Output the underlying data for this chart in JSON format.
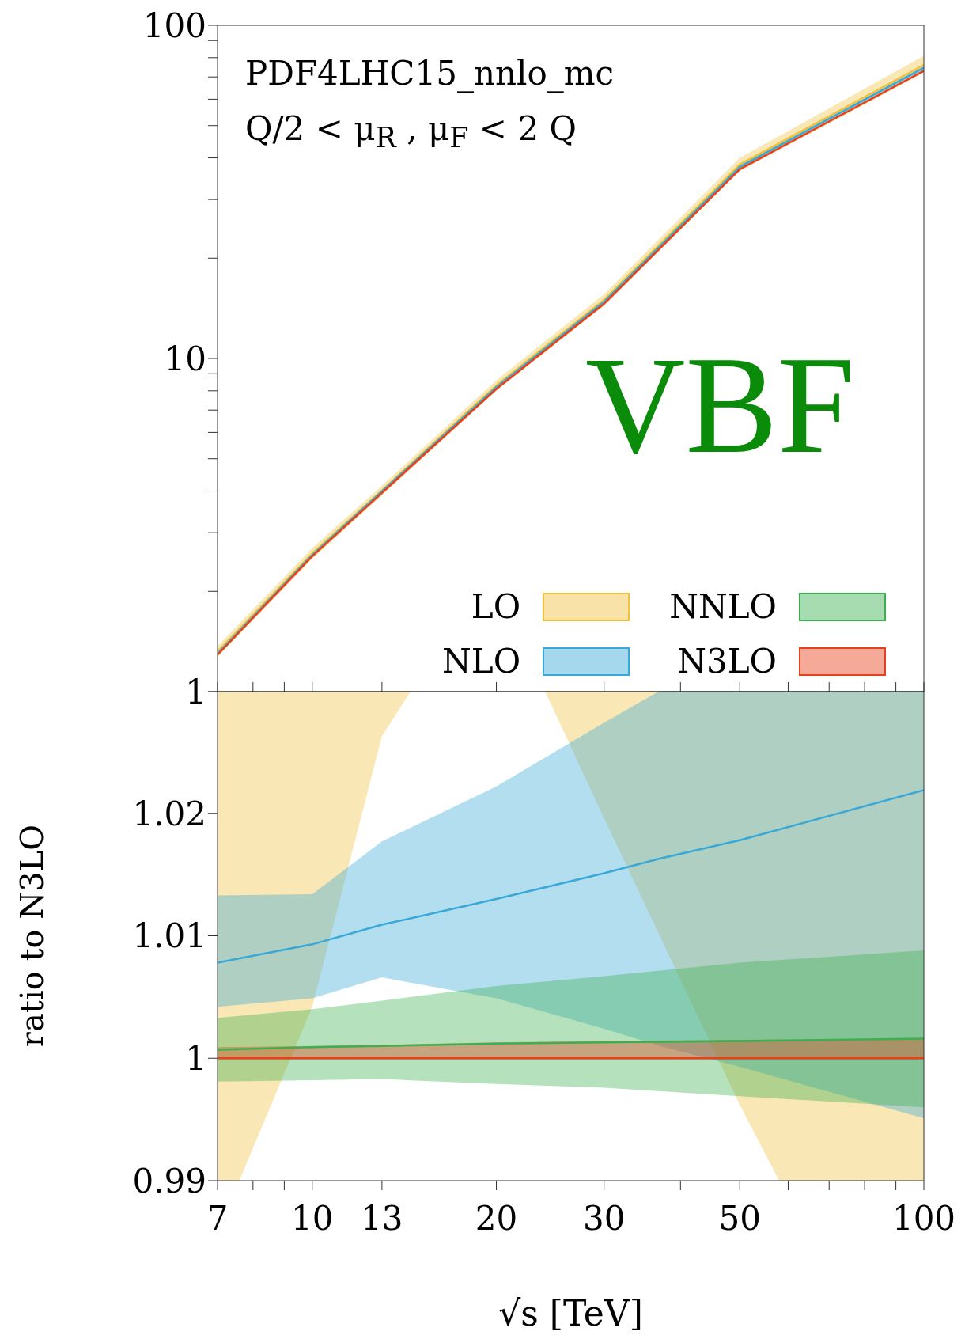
{
  "chart_data": [
    {
      "type": "line",
      "log": "xy",
      "xlim": [
        7,
        100
      ],
      "ylim": [
        1,
        100
      ],
      "xticks": [
        {
          "value": 7,
          "label": null
        },
        {
          "value": 8,
          "label": null
        },
        {
          "value": 9,
          "label": null
        },
        {
          "value": 10,
          "label": null
        },
        {
          "value": 13,
          "label": null
        },
        {
          "value": 20,
          "label": null
        },
        {
          "value": 30,
          "label": null
        },
        {
          "value": 40,
          "label": null
        },
        {
          "value": 50,
          "label": null
        },
        {
          "value": 60,
          "label": null
        },
        {
          "value": 70,
          "label": null
        },
        {
          "value": 80,
          "label": null
        },
        {
          "value": 90,
          "label": null
        },
        {
          "value": 100,
          "label": null
        }
      ],
      "yticks": [
        1,
        {
          "value": 2,
          "label": null
        },
        {
          "value": 3,
          "label": null
        },
        {
          "value": 4,
          "label": null
        },
        {
          "value": 5,
          "label": null
        },
        {
          "value": 6,
          "label": null
        },
        {
          "value": 7,
          "label": null
        },
        {
          "value": 8,
          "label": null
        },
        {
          "value": 9,
          "label": null
        },
        10,
        {
          "value": 20,
          "label": null
        },
        {
          "value": 30,
          "label": null
        },
        {
          "value": 40,
          "label": null
        },
        {
          "value": 50,
          "label": null
        },
        {
          "value": 60,
          "label": null
        },
        {
          "value": 70,
          "label": null
        },
        {
          "value": 80,
          "label": null
        },
        {
          "value": 90,
          "label": null
        },
        100
      ],
      "tick_labels": "y",
      "legend": "bottom right",
      "marker": "none",
      "annotations": [
        "PDF4LHC15_nnlo_mc",
        "Q/2 < μ$_{R}$ , μ$_{F}$ < 2 Q",
        "VBF"
      ],
      "x": [
        7,
        10,
        13,
        20,
        30,
        50,
        100
      ],
      "series": [
        {
          "name": "LO",
          "color": "#f0bf3c",
          "values": [
            1.32,
            2.6,
            4.02,
            8.3,
            15.0,
            38.2,
            76
          ],
          "lower": [
            1.27,
            2.5,
            3.88,
            8.0,
            14.4,
            36.5,
            72
          ],
          "upper": [
            1.37,
            2.7,
            4.15,
            8.6,
            15.6,
            40,
            81
          ]
        },
        {
          "name": "NLO",
          "color": "#38a8d8",
          "values": [
            1.3,
            2.57,
            3.99,
            8.2,
            14.8,
            37.6,
            74.6
          ],
          "lower": [
            1.29,
            2.56,
            3.97,
            8.15,
            14.65,
            37.0,
            72.7
          ],
          "upper": [
            1.31,
            2.59,
            4.02,
            8.3,
            15.0,
            38.1,
            75.2
          ]
        },
        {
          "name": "NNLO",
          "color": "#3cb050",
          "values": [
            null,
            null,
            null,
            null,
            null,
            null,
            null
          ]
        },
        {
          "name": "N3LO",
          "color": "#e8401c",
          "values": [
            1.29,
            2.55,
            3.95,
            8.1,
            14.6,
            37,
            73
          ]
        }
      ]
    },
    {
      "type": "line",
      "log": "x",
      "xlim": [
        7,
        100
      ],
      "ylim": [
        0.99,
        1.03
      ],
      "xticks": [
        7,
        {
          "value": 8,
          "label": null
        },
        {
          "value": 9,
          "label": null
        },
        10,
        13,
        20,
        30,
        {
          "value": 40,
          "label": null
        },
        50,
        {
          "value": 60,
          "label": null
        },
        {
          "value": 70,
          "label": null
        },
        {
          "value": 80,
          "label": null
        },
        {
          "value": 90,
          "label": null
        },
        100
      ],
      "yticks": [
        0.99,
        1,
        1.01,
        1.02,
        {
          "value": 1.03,
          "label": null
        }
      ],
      "xlabel": "√s [TeV]",
      "ylabel": "ratio to N3LO",
      "marker": "none",
      "x": [
        7,
        10,
        13,
        20,
        30,
        50,
        100
      ],
      "series": [
        {
          "color": "#f0bf3c",
          "x": [
            7,
            7.6,
            10,
            13,
            14.5,
            24,
            30,
            50,
            58,
            100
          ],
          "values": [
            null,
            null,
            null,
            null,
            null,
            null,
            null,
            null,
            null,
            null
          ],
          "lower": [
            0.99,
            0.99,
            1.0042,
            1.0263,
            1.03,
            1.03,
            1.0196,
            0.9962,
            0.99,
            0.99
          ],
          "upper": [
            1.03,
            1.03,
            1.03,
            1.03,
            1.03,
            1.03,
            1.03,
            1.03,
            1.03,
            1.03
          ]
        },
        {
          "color": "#38a8d8",
          "x": [
            7,
            10,
            13,
            20,
            30,
            37,
            50,
            100
          ],
          "values": [
            1.0078,
            1.0093,
            1.0109,
            1.013,
            1.0151,
            1.0163,
            1.0178,
            1.0219
          ],
          "lower": [
            1.0042,
            1.0049,
            1.0066,
            1.0049,
            1.0024,
            1.001,
            0.9993,
            0.9951
          ],
          "upper": [
            1.0133,
            1.0134,
            1.0177,
            1.0222,
            1.0274,
            1.03,
            1.03,
            1.03
          ]
        },
        {
          "color": "#3cb050",
          "values": [
            1.0007,
            1.0009,
            1.001,
            1.0012,
            1.0013,
            1.0014,
            1.0016
          ],
          "lower": [
            0.9981,
            0.9982,
            0.9983,
            0.9979,
            0.9976,
            0.9969,
            0.996
          ],
          "upper": [
            1.0033,
            1.004,
            1.0047,
            1.0059,
            1.0067,
            1.0078,
            1.0088
          ]
        },
        {
          "color": "#e8401c",
          "values": [
            1,
            1,
            1,
            1,
            1,
            1,
            1
          ],
          "lower": [
            0.9999,
            0.9999,
            0.9999,
            0.9999,
            0.9999,
            0.9999,
            0.9999
          ],
          "upper": [
            1.0009,
            1.001,
            1.0011,
            1.0013,
            1.0014,
            1.0015,
            1.0016
          ]
        }
      ]
    }
  ]
}
